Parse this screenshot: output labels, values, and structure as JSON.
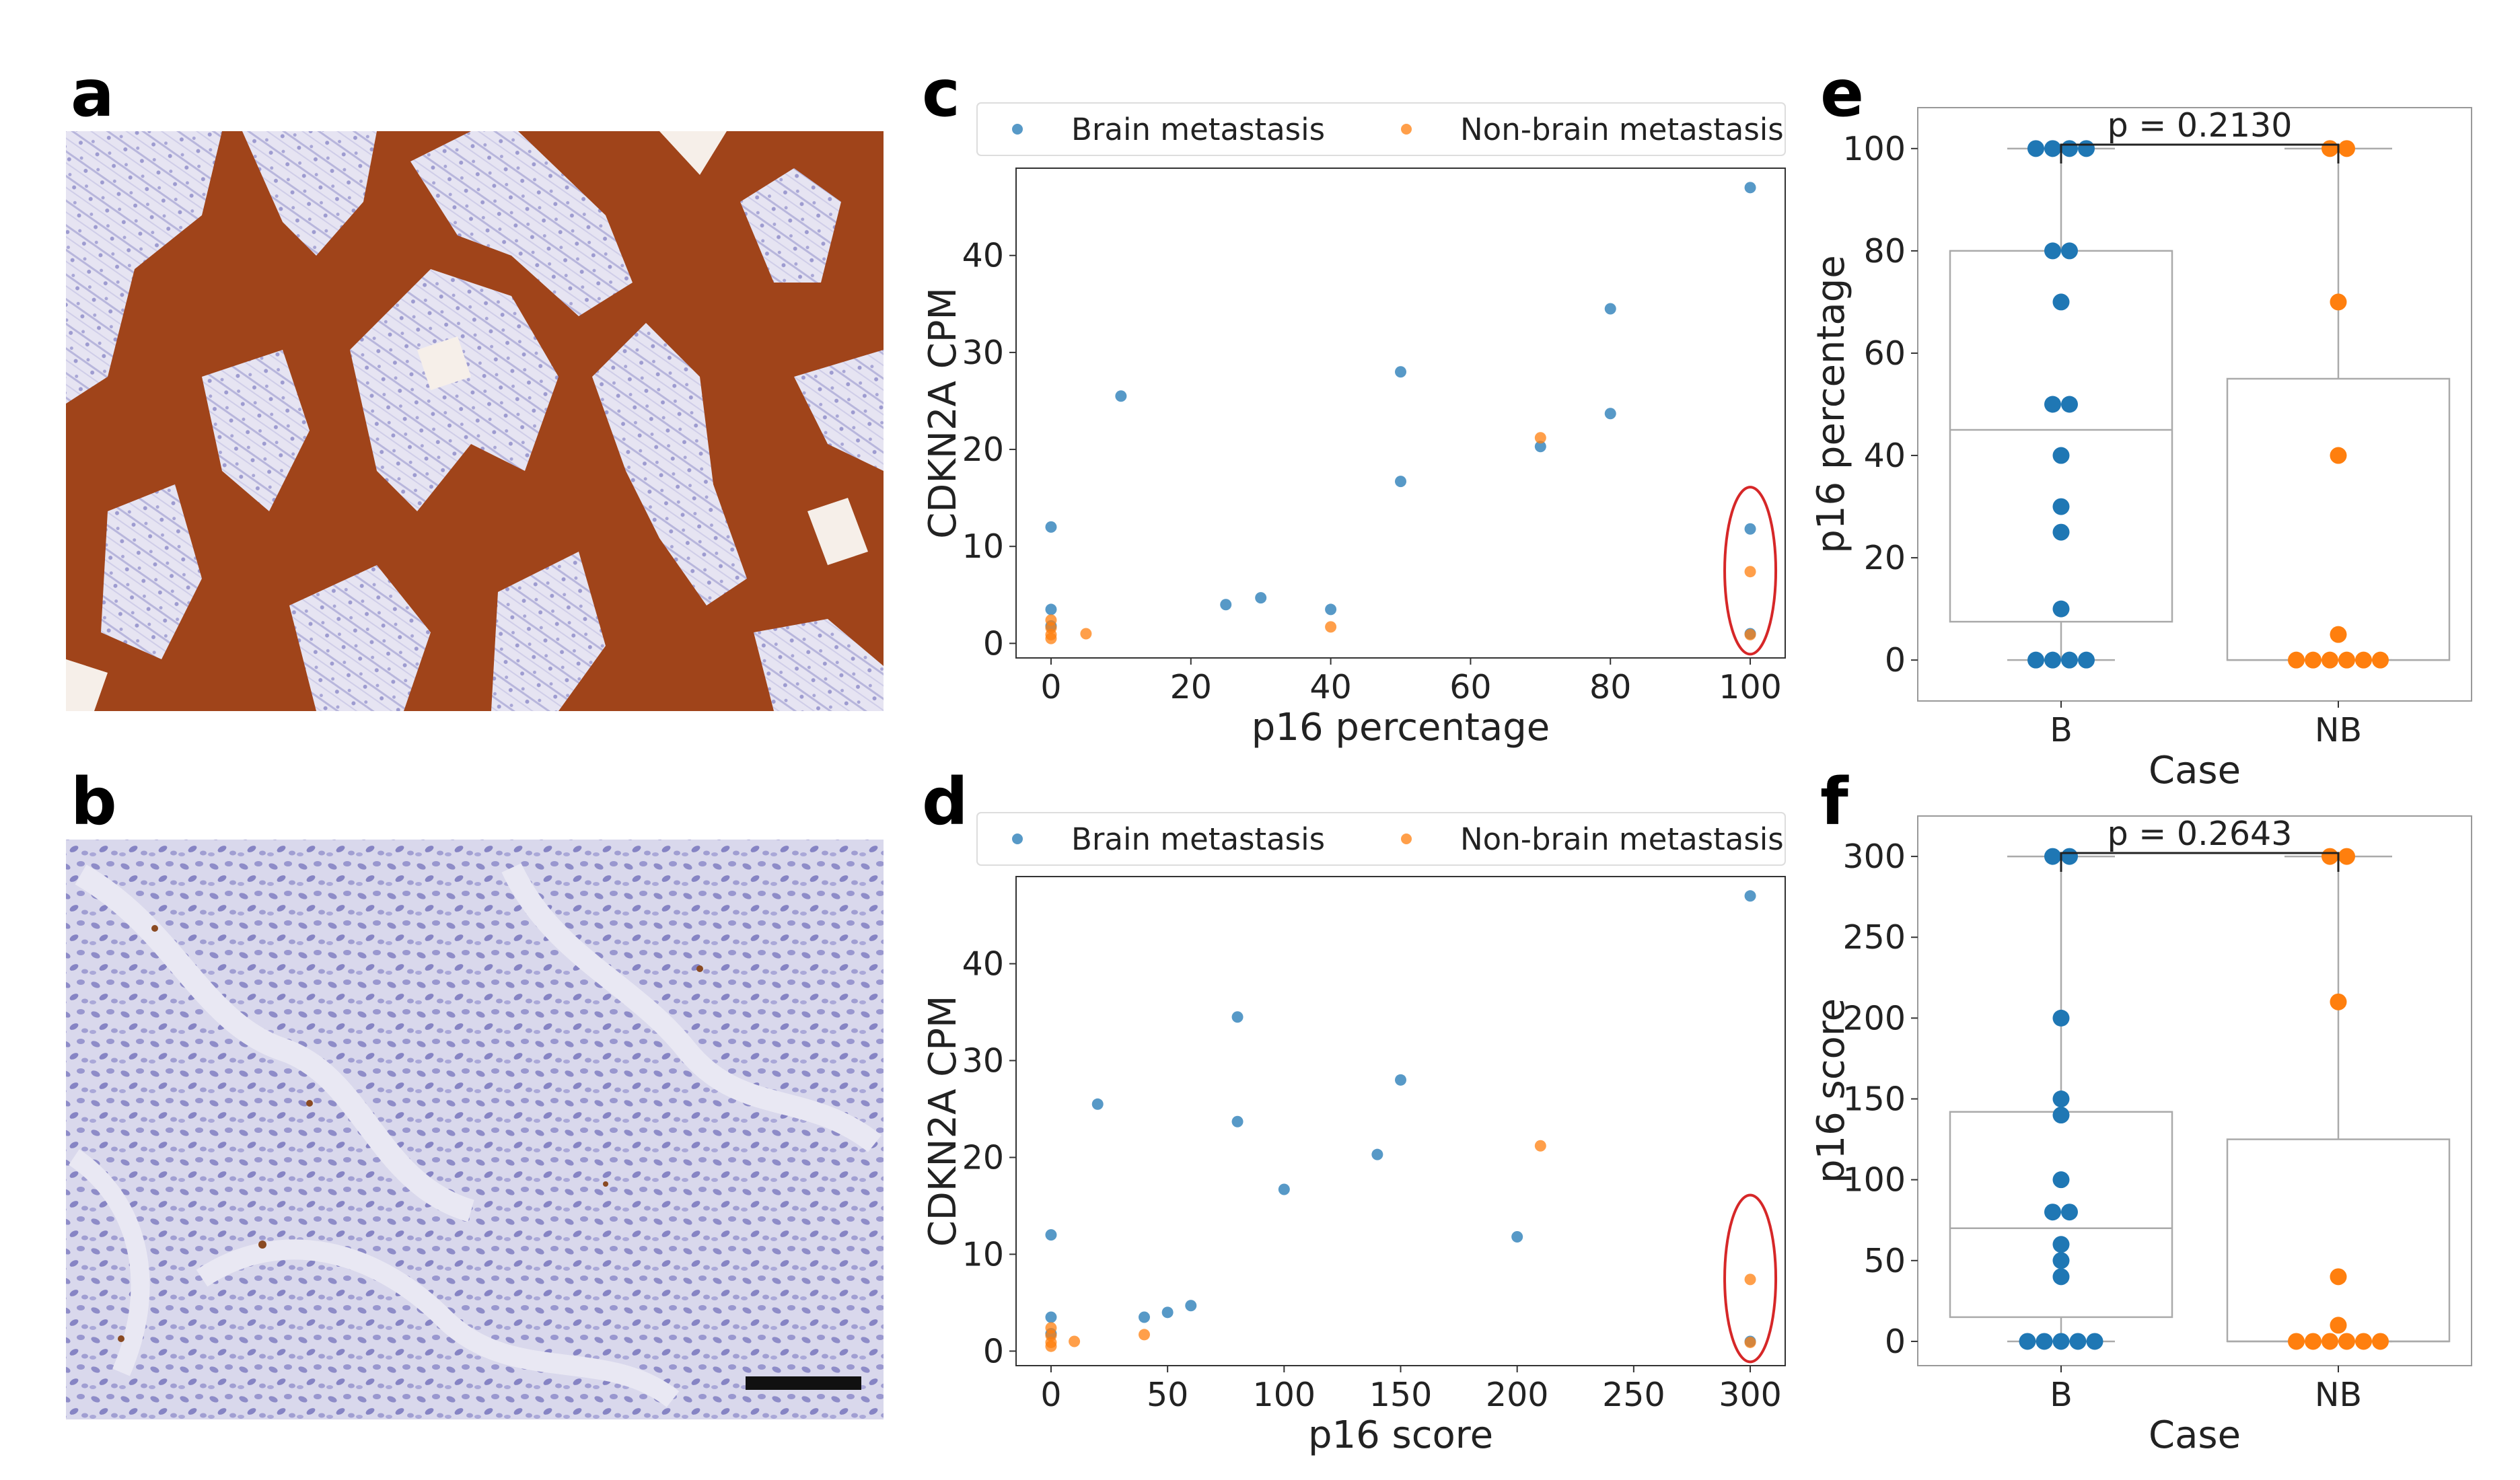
{
  "panel_labels": [
    "a",
    "b",
    "c",
    "d",
    "e",
    "f"
  ],
  "colors": {
    "brain": "#1f77b4",
    "non_brain": "#ff7f0e",
    "stain_brown": "#a0441a",
    "hematoxylin": "#8c8ccc",
    "circle": "#d62728"
  },
  "images": {
    "a": {
      "description": "IHC image, strong p16 staining"
    },
    "b": {
      "description": "IHC image, negative p16 staining",
      "scale_bar": true
    }
  },
  "chart_data": [
    {
      "panel": "c",
      "type": "scatter",
      "xlabel": "p16 percentage",
      "ylabel": "CDKN2A CPM",
      "xlim": [
        -5,
        105
      ],
      "ylim": [
        -1.5,
        49
      ],
      "xticks": [
        0,
        20,
        40,
        60,
        80,
        100
      ],
      "yticks": [
        0,
        10,
        20,
        30,
        40
      ],
      "legend": "top",
      "series": [
        {
          "name": "Brain metastasis",
          "color": "#1f77b4",
          "points": [
            [
              100,
              47
            ],
            [
              80,
              34.5
            ],
            [
              50,
              28
            ],
            [
              10,
              25.5
            ],
            [
              80,
              23.7
            ],
            [
              70,
              20.3
            ],
            [
              50,
              16.7
            ],
            [
              0,
              12
            ],
            [
              100,
              11.8
            ],
            [
              30,
              4.7
            ],
            [
              25,
              4
            ],
            [
              0,
              3.5
            ],
            [
              40,
              3.5
            ],
            [
              0,
              1.8
            ],
            [
              100,
              1
            ]
          ]
        },
        {
          "name": "Non-brain metastasis",
          "color": "#ff7f0e",
          "points": [
            [
              70,
              21.2
            ],
            [
              100,
              7.4
            ],
            [
              0,
              2.4
            ],
            [
              40,
              1.7
            ],
            [
              0,
              1.6
            ],
            [
              5,
              1
            ],
            [
              0,
              0.9
            ],
            [
              100,
              0.9
            ],
            [
              0,
              0.5
            ]
          ]
        }
      ],
      "highlight": {
        "x": 100,
        "y_range": [
          0,
          15
        ]
      }
    },
    {
      "panel": "d",
      "type": "scatter",
      "xlabel": "p16 score",
      "ylabel": "CDKN2A CPM",
      "xlim": [
        -15,
        315
      ],
      "ylim": [
        -1.5,
        49
      ],
      "xticks": [
        0,
        50,
        100,
        150,
        200,
        250,
        300
      ],
      "yticks": [
        0,
        10,
        20,
        30,
        40
      ],
      "legend": "top",
      "series": [
        {
          "name": "Brain metastasis",
          "color": "#1f77b4",
          "points": [
            [
              300,
              47
            ],
            [
              80,
              34.5
            ],
            [
              150,
              28
            ],
            [
              20,
              25.5
            ],
            [
              80,
              23.7
            ],
            [
              140,
              20.3
            ],
            [
              100,
              16.7
            ],
            [
              0,
              12
            ],
            [
              200,
              11.8
            ],
            [
              60,
              4.7
            ],
            [
              50,
              4
            ],
            [
              0,
              3.5
            ],
            [
              40,
              3.5
            ],
            [
              0,
              1.8
            ],
            [
              300,
              1
            ]
          ]
        },
        {
          "name": "Non-brain metastasis",
          "color": "#ff7f0e",
          "points": [
            [
              210,
              21.2
            ],
            [
              300,
              7.4
            ],
            [
              0,
              2.4
            ],
            [
              40,
              1.7
            ],
            [
              0,
              1.6
            ],
            [
              10,
              1
            ],
            [
              0,
              0.9
            ],
            [
              300,
              0.9
            ],
            [
              0,
              0.5
            ]
          ]
        }
      ],
      "highlight": {
        "x": 300,
        "y_range": [
          0,
          15
        ]
      }
    },
    {
      "panel": "e",
      "type": "box",
      "xlabel": "Case",
      "ylabel": "p16 percentage",
      "ylim": [
        -8,
        108
      ],
      "yticks": [
        0,
        20,
        40,
        60,
        80,
        100
      ],
      "p_label": "p = 0.2130",
      "groups": [
        {
          "name": "B",
          "color": "#1f77b4",
          "q1": 7.5,
          "median": 45,
          "q3": 80,
          "whisker_low": 0,
          "whisker_high": 100,
          "values": [
            100,
            100,
            100,
            100,
            80,
            80,
            70,
            50,
            50,
            40,
            30,
            25,
            10,
            0,
            0,
            0,
            0
          ]
        },
        {
          "name": "NB",
          "color": "#ff7f0e",
          "q1": 0,
          "median": 0,
          "q3": 55,
          "whisker_low": 0,
          "whisker_high": 100,
          "values": [
            100,
            100,
            70,
            40,
            5,
            0,
            0,
            0,
            0,
            0,
            0
          ]
        }
      ]
    },
    {
      "panel": "f",
      "type": "box",
      "xlabel": "Case",
      "ylabel": "p16 score",
      "ylim": [
        -15,
        325
      ],
      "yticks": [
        0,
        50,
        100,
        150,
        200,
        250,
        300
      ],
      "p_label": "p = 0.2643",
      "groups": [
        {
          "name": "B",
          "color": "#1f77b4",
          "q1": 15,
          "median": 70,
          "q3": 142,
          "whisker_low": 0,
          "whisker_high": 300,
          "values": [
            300,
            300,
            200,
            150,
            140,
            100,
            80,
            80,
            60,
            50,
            40,
            0,
            0,
            0,
            0,
            0
          ]
        },
        {
          "name": "NB",
          "color": "#ff7f0e",
          "q1": 0,
          "median": 0,
          "q3": 125,
          "whisker_low": 0,
          "whisker_high": 300,
          "values": [
            300,
            300,
            210,
            40,
            10,
            0,
            0,
            0,
            0,
            0,
            0
          ]
        }
      ]
    }
  ]
}
